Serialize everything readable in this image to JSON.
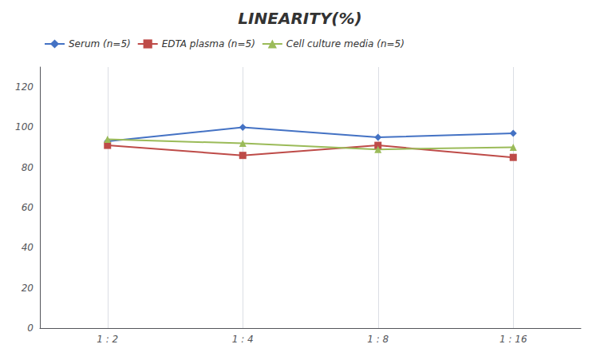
{
  "chart_data": {
    "type": "line",
    "title": "LINEARITY(%)",
    "categories": [
      "1 : 2",
      "1 : 4",
      "1 : 8",
      "1 : 16"
    ],
    "series": [
      {
        "name": "Serum (n=5)",
        "color": "#4472C4",
        "marker": "diamond",
        "values": [
          93,
          100,
          95,
          97
        ]
      },
      {
        "name": "EDTA plasma (n=5)",
        "color": "#BE4B48",
        "marker": "square",
        "values": [
          91,
          86,
          91,
          85
        ]
      },
      {
        "name": "Cell culture media (n=5)",
        "color": "#9BBB59",
        "marker": "triangle",
        "values": [
          94,
          92,
          89,
          90
        ]
      }
    ],
    "ylim": [
      0,
      130
    ],
    "yticks": [
      0,
      20,
      40,
      60,
      80,
      100,
      120
    ],
    "grid": "x",
    "legend": "upper left"
  }
}
